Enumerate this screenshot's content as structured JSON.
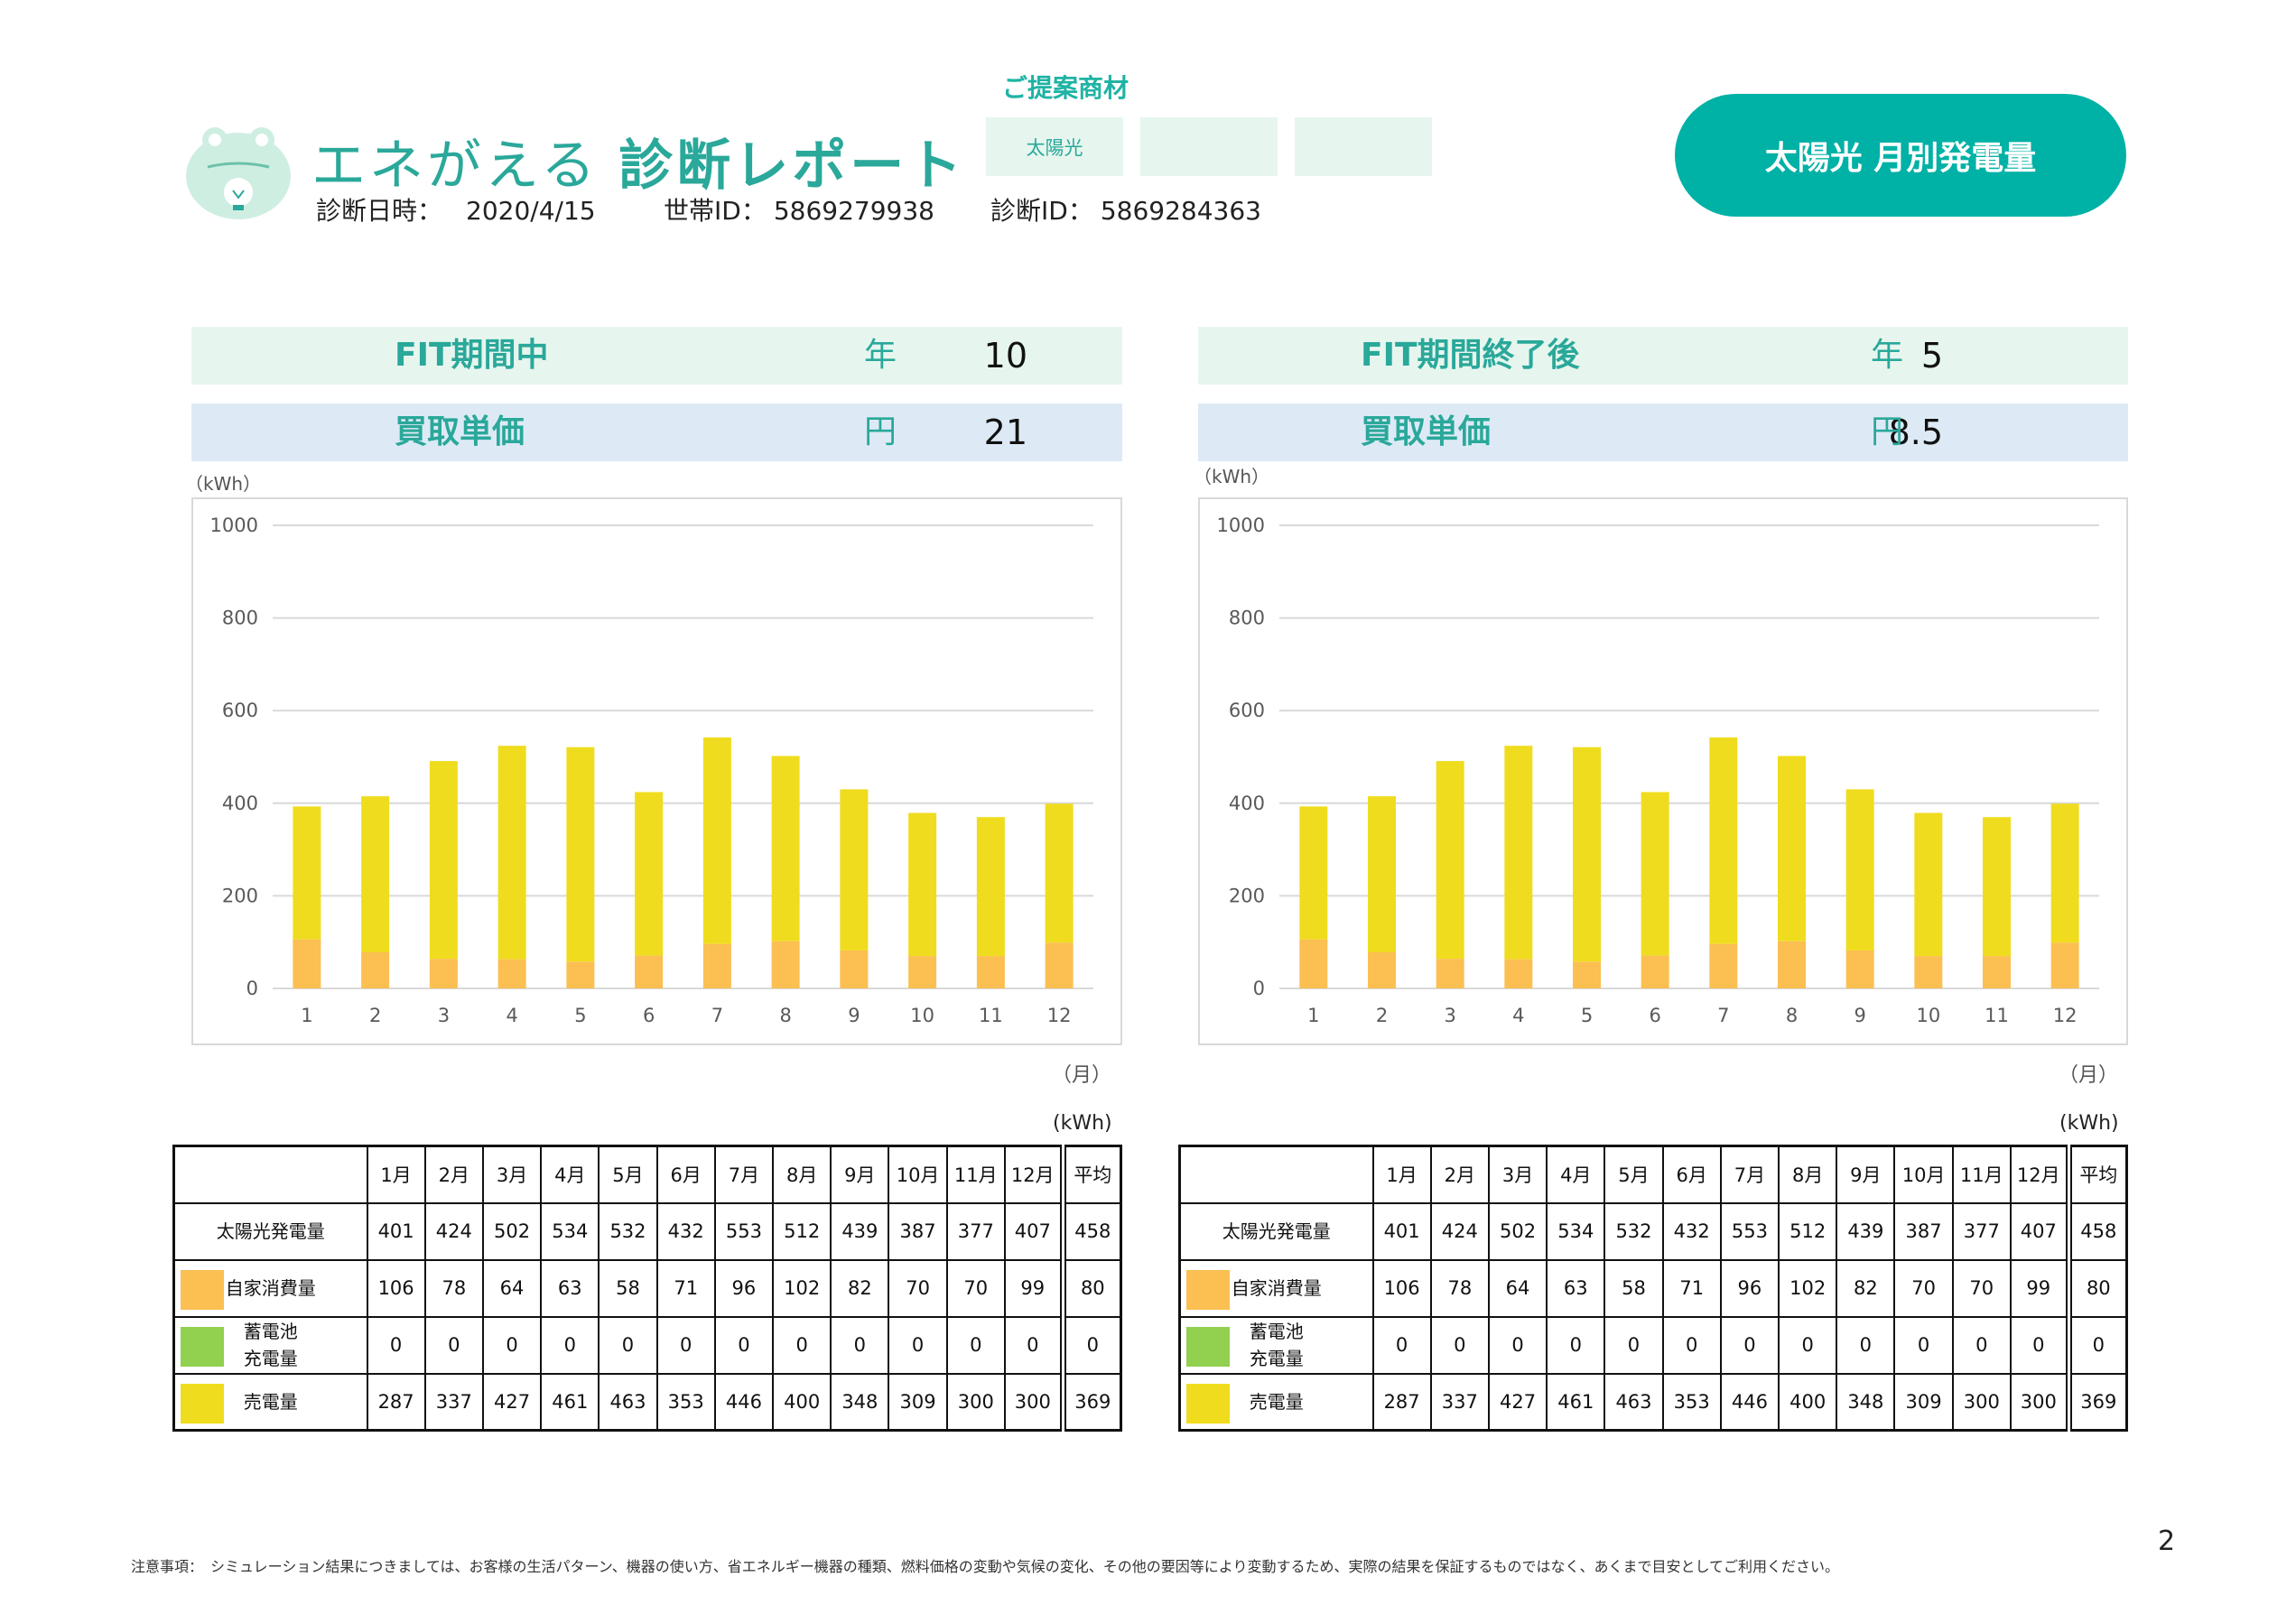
{
  "header": {
    "title_part1": "エネがえる",
    "title_part2": "診断レポート",
    "diagnosis_date_label": "診断日時：",
    "diagnosis_date": "2020/4/15",
    "household_id_label": "世帯ID：",
    "household_id": "5869279938",
    "diagnosis_id_label": "診断ID：",
    "diagnosis_id": "5869284363"
  },
  "proposal": {
    "label": "ご提案商材",
    "items": [
      "太陽光",
      "",
      ""
    ]
  },
  "report_title": "太陽光 月別発電量",
  "left_panel": {
    "period_label": "FIT期間中",
    "period_value": "10",
    "period_unit": "年",
    "price_label": "買取単価",
    "price_value": "21",
    "price_unit": "円",
    "y_unit": "（kWh）",
    "x_unit": "（月）",
    "table_unit": "(kWh)"
  },
  "right_panel": {
    "period_label": "FIT期間終了後",
    "period_value": "5",
    "period_unit": "年",
    "price_label": "買取単価",
    "price_value": "8.5",
    "price_unit": "円",
    "y_unit": "（kWh）",
    "x_unit": "（月）",
    "table_unit": "(kWh)"
  },
  "table": {
    "columns": [
      "1月",
      "2月",
      "3月",
      "4月",
      "5月",
      "6月",
      "7月",
      "8月",
      "9月",
      "10月",
      "11月",
      "12月",
      "平均"
    ],
    "rows": [
      {
        "label": "太陽光発電量",
        "values": [
          "401",
          "424",
          "502",
          "534",
          "532",
          "432",
          "553",
          "512",
          "439",
          "387",
          "377",
          "407",
          "458"
        ]
      },
      {
        "label": "自家消費量",
        "values": [
          "106",
          "78",
          "64",
          "63",
          "58",
          "71",
          "96",
          "102",
          "82",
          "70",
          "70",
          "99",
          "80"
        ]
      },
      {
        "label_line1": "蓄電池",
        "label_line2": "充電量",
        "values": [
          "0",
          "0",
          "0",
          "0",
          "0",
          "0",
          "0",
          "0",
          "0",
          "0",
          "0",
          "0",
          "0"
        ]
      },
      {
        "label": "売電量",
        "values": [
          "287",
          "337",
          "427",
          "461",
          "463",
          "353",
          "446",
          "400",
          "348",
          "309",
          "300",
          "300",
          "369"
        ]
      }
    ]
  },
  "colors": {
    "self_consumption": "#fbbf52",
    "battery_charge": "#92d050",
    "sold": "#f0dc1e",
    "accent": "#00b1a6",
    "accent_text": "#2aa89a"
  },
  "chart_data": [
    {
      "type": "bar",
      "stacked": true,
      "title": "",
      "xlabel": "（月）",
      "ylabel": "（kWh）",
      "categories": [
        "1",
        "2",
        "3",
        "4",
        "5",
        "6",
        "7",
        "8",
        "9",
        "10",
        "11",
        "12"
      ],
      "ylim": [
        0,
        1000
      ],
      "yticks": [
        0,
        200,
        400,
        600,
        800,
        1000
      ],
      "grid": true,
      "legend": "none",
      "series": [
        {
          "values": [
            106,
            78,
            64,
            63,
            58,
            71,
            96,
            102,
            82,
            70,
            70,
            99
          ],
          "color": "#fbbf52"
        },
        {
          "values": [
            287,
            337,
            427,
            461,
            463,
            353,
            446,
            400,
            348,
            309,
            300,
            300
          ],
          "color": "#f0dc1e"
        }
      ]
    },
    {
      "type": "bar",
      "stacked": true,
      "title": "",
      "xlabel": "（月）",
      "ylabel": "（kWh）",
      "categories": [
        "1",
        "2",
        "3",
        "4",
        "5",
        "6",
        "7",
        "8",
        "9",
        "10",
        "11",
        "12"
      ],
      "ylim": [
        0,
        1000
      ],
      "yticks": [
        0,
        200,
        400,
        600,
        800,
        1000
      ],
      "grid": true,
      "legend": "none",
      "series": [
        {
          "values": [
            106,
            78,
            64,
            63,
            58,
            71,
            96,
            102,
            82,
            70,
            70,
            99
          ],
          "color": "#fbbf52"
        },
        {
          "values": [
            287,
            337,
            427,
            461,
            463,
            353,
            446,
            400,
            348,
            309,
            300,
            300
          ],
          "color": "#f0dc1e"
        }
      ]
    }
  ],
  "footnote": "注意事項：　シミュレーション結果につきましては、お客様の生活パターン、機器の使い方、省エネルギー機器の種類、燃料価格の変動や気候の変化、その他の要因等により変動するため、実際の結果を保証するものではなく、あくまで目安としてご利用ください。",
  "page_number": "2"
}
